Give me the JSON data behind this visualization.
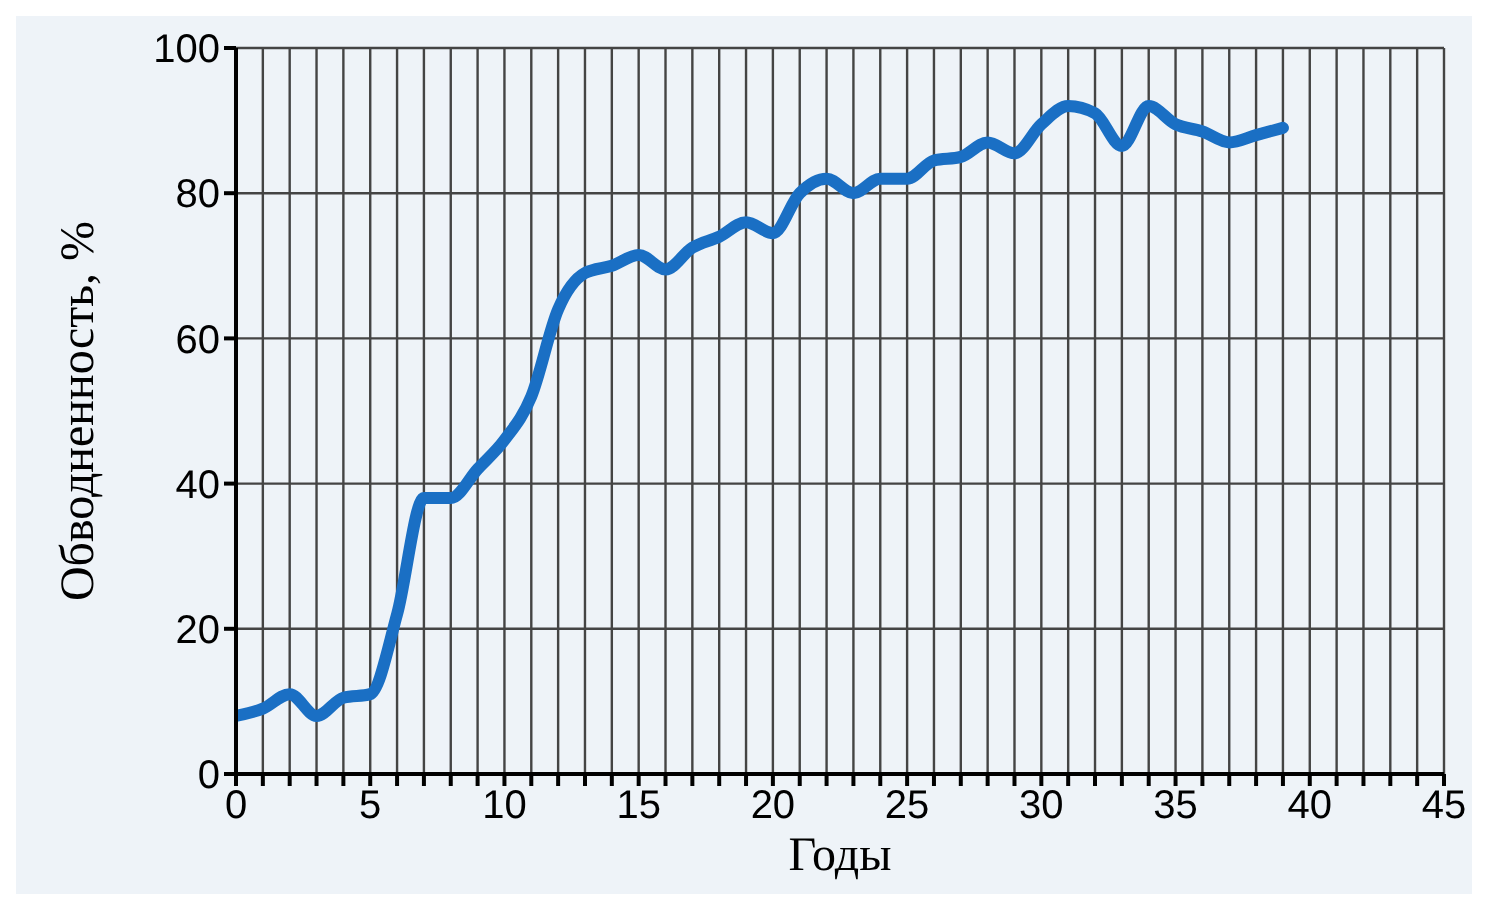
{
  "chart_data": {
    "type": "line",
    "xlabel": "Годы",
    "ylabel": "Обводненность, %",
    "x": [
      0,
      1,
      2,
      3,
      4,
      5,
      6,
      7,
      8,
      9,
      10,
      11,
      12,
      13,
      14,
      15,
      16,
      17,
      18,
      19,
      20,
      21,
      22,
      23,
      24,
      25,
      26,
      27,
      28,
      29,
      30,
      31,
      32,
      33,
      34,
      35,
      36,
      37,
      38,
      39
    ],
    "series": [
      {
        "color": "#1a6fc4",
        "values": [
          8,
          9,
          11,
          8,
          10.5,
          11,
          22,
          38,
          38,
          42,
          46,
          52,
          64,
          69,
          70,
          71.5,
          69.5,
          72.5,
          74,
          76,
          74.5,
          80,
          82,
          80,
          82,
          82,
          84.5,
          85,
          87,
          85.5,
          89.5,
          92,
          91,
          86.5,
          92,
          89.5,
          88.5,
          87,
          88,
          89
        ]
      }
    ],
    "xlim": [
      0,
      45
    ],
    "xticks": [
      0,
      {
        "value": 1,
        "label": null
      },
      {
        "value": 2,
        "label": null
      },
      {
        "value": 3,
        "label": null
      },
      {
        "value": 4,
        "label": null
      },
      5,
      {
        "value": 6,
        "label": null
      },
      {
        "value": 7,
        "label": null
      },
      {
        "value": 8,
        "label": null
      },
      {
        "value": 9,
        "label": null
      },
      10,
      {
        "value": 11,
        "label": null
      },
      {
        "value": 12,
        "label": null
      },
      {
        "value": 13,
        "label": null
      },
      {
        "value": 14,
        "label": null
      },
      15,
      {
        "value": 16,
        "label": null
      },
      {
        "value": 17,
        "label": null
      },
      {
        "value": 18,
        "label": null
      },
      {
        "value": 19,
        "label": null
      },
      20,
      {
        "value": 21,
        "label": null
      },
      {
        "value": 22,
        "label": null
      },
      {
        "value": 23,
        "label": null
      },
      {
        "value": 24,
        "label": null
      },
      25,
      {
        "value": 26,
        "label": null
      },
      {
        "value": 27,
        "label": null
      },
      {
        "value": 28,
        "label": null
      },
      {
        "value": 29,
        "label": null
      },
      30,
      {
        "value": 31,
        "label": null
      },
      {
        "value": 32,
        "label": null
      },
      {
        "value": 33,
        "label": null
      },
      {
        "value": 34,
        "label": null
      },
      35,
      {
        "value": 36,
        "label": null
      },
      {
        "value": 37,
        "label": null
      },
      {
        "value": 38,
        "label": null
      },
      {
        "value": 39,
        "label": null
      },
      40,
      {
        "value": 41,
        "label": null
      },
      {
        "value": 42,
        "label": null
      },
      {
        "value": 43,
        "label": null
      },
      {
        "value": 44,
        "label": null
      },
      45
    ],
    "ylim": [
      0,
      100
    ],
    "yticks": [
      0,
      20,
      40,
      60,
      80,
      100
    ],
    "grid": true,
    "marker": "none",
    "line_style": "solid"
  }
}
